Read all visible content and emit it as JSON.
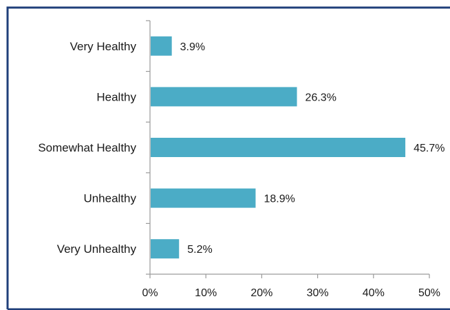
{
  "chart_data": {
    "type": "bar",
    "orientation": "horizontal",
    "categories": [
      "Very Healthy",
      "Healthy",
      "Somewhat Healthy",
      "Unhealthy",
      "Very Unhealthy"
    ],
    "values": [
      3.9,
      26.3,
      45.7,
      18.9,
      5.2
    ],
    "value_labels": [
      "3.9%",
      "26.3%",
      "45.7%",
      "18.9%",
      "5.2%"
    ],
    "xlim": [
      0,
      50
    ],
    "x_ticks": [
      0,
      10,
      20,
      30,
      40,
      50
    ],
    "x_tick_labels": [
      "0%",
      "10%",
      "20%",
      "30%",
      "40%",
      "50%"
    ],
    "title": "",
    "xlabel": "",
    "ylabel": "",
    "grid": false,
    "legend": "none",
    "colors": {
      "bar": "#4bacc6",
      "frame": "#1f3f7a",
      "axis": "#9a9a9a"
    }
  }
}
